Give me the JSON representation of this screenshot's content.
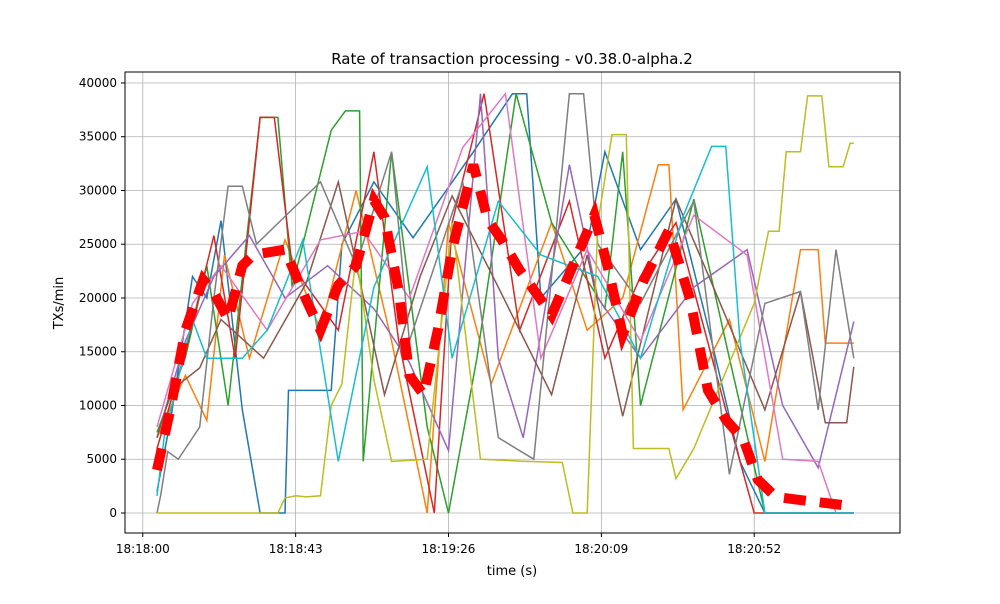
{
  "chart_data": {
    "type": "line",
    "title": "Rate of transaction processing  -  v0.38.0-alpha.2",
    "xlabel": "time (s)",
    "ylabel": "TXs/min",
    "xlim": [
      "18:17:55",
      "18:21:33"
    ],
    "ylim": [
      -1860,
      41020
    ],
    "x_ticks": [
      "18:18:00",
      "18:18:43",
      "18:19:26",
      "18:20:09",
      "18:20:52"
    ],
    "y_ticks": [
      0,
      5000,
      10000,
      15000,
      20000,
      25000,
      30000,
      35000,
      40000
    ],
    "grid": true,
    "series": [
      {
        "color": "#1f77b4",
        "points": [
          [
            "18:18:04",
            2000
          ],
          [
            "18:18:08",
            9000
          ],
          [
            "18:18:14",
            22000
          ],
          [
            "18:18:18",
            20000
          ],
          [
            "18:18:22",
            27200
          ],
          [
            "18:18:28",
            9600
          ],
          [
            "18:18:33",
            0
          ],
          [
            "18:18:40",
            0
          ],
          [
            "18:18:41",
            11400
          ],
          [
            "18:18:53",
            11400
          ],
          [
            "18:18:56",
            25000
          ],
          [
            "18:19:05",
            30800
          ],
          [
            "18:19:16",
            25600
          ],
          [
            "18:19:33",
            33600
          ],
          [
            "18:19:44",
            39000
          ],
          [
            "18:19:48",
            39000
          ],
          [
            "18:19:52",
            20000
          ],
          [
            "18:20:05",
            25000
          ],
          [
            "18:20:10",
            33600
          ],
          [
            "18:20:20",
            24500
          ],
          [
            "18:20:30",
            29200
          ],
          [
            "18:20:40",
            16000
          ],
          [
            "18:20:48",
            4800
          ],
          [
            "18:20:55",
            0
          ],
          [
            "18:21:20",
            0
          ]
        ]
      },
      {
        "color": "#ff7f0e",
        "points": [
          [
            "18:18:04",
            7000
          ],
          [
            "18:18:12",
            12800
          ],
          [
            "18:18:18",
            8600
          ],
          [
            "18:18:23",
            24000
          ],
          [
            "18:18:30",
            14400
          ],
          [
            "18:18:40",
            25400
          ],
          [
            "18:18:50",
            17000
          ],
          [
            "18:19:00",
            30000
          ],
          [
            "18:19:10",
            16000
          ],
          [
            "18:19:20",
            0
          ],
          [
            "18:19:26",
            27000
          ],
          [
            "18:19:38",
            12000
          ],
          [
            "18:19:55",
            27000
          ],
          [
            "18:20:05",
            17000
          ],
          [
            "18:20:15",
            20000
          ],
          [
            "18:20:25",
            32400
          ],
          [
            "18:20:28",
            32400
          ],
          [
            "18:20:32",
            9600
          ],
          [
            "18:20:45",
            18000
          ],
          [
            "18:20:55",
            4800
          ],
          [
            "18:21:05",
            24500
          ],
          [
            "18:21:10",
            24500
          ],
          [
            "18:21:12",
            15800
          ],
          [
            "18:21:20",
            15800
          ]
        ]
      },
      {
        "color": "#2ca02c",
        "points": [
          [
            "18:18:04",
            7500
          ],
          [
            "18:18:12",
            14500
          ],
          [
            "18:18:18",
            23000
          ],
          [
            "18:18:24",
            10000
          ],
          [
            "18:18:33",
            36800
          ],
          [
            "18:18:38",
            36800
          ],
          [
            "18:18:42",
            21000
          ],
          [
            "18:18:53",
            35600
          ],
          [
            "18:18:57",
            37400
          ],
          [
            "18:19:01",
            37400
          ],
          [
            "18:19:02",
            4800
          ],
          [
            "18:19:10",
            33600
          ],
          [
            "18:19:20",
            8000
          ],
          [
            "18:19:26",
            0
          ],
          [
            "18:19:34",
            14400
          ],
          [
            "18:19:45",
            39000
          ],
          [
            "18:19:55",
            27000
          ],
          [
            "18:20:10",
            19000
          ],
          [
            "18:20:15",
            33600
          ],
          [
            "18:20:20",
            10000
          ],
          [
            "18:20:35",
            29200
          ],
          [
            "18:20:45",
            14400
          ],
          [
            "18:20:55",
            0
          ],
          [
            "18:21:20",
            0
          ]
        ]
      },
      {
        "color": "#d62728",
        "points": [
          [
            "18:18:04",
            6000
          ],
          [
            "18:18:12",
            15000
          ],
          [
            "18:18:20",
            25800
          ],
          [
            "18:18:26",
            14400
          ],
          [
            "18:18:33",
            36800
          ],
          [
            "18:18:37",
            36800
          ],
          [
            "18:18:42",
            23000
          ],
          [
            "18:18:55",
            17000
          ],
          [
            "18:19:05",
            33600
          ],
          [
            "18:19:12",
            16000
          ],
          [
            "18:19:22",
            0
          ],
          [
            "18:19:27",
            27000
          ],
          [
            "18:19:36",
            39000
          ],
          [
            "18:19:46",
            17000
          ],
          [
            "18:20:00",
            29000
          ],
          [
            "18:20:10",
            14400
          ],
          [
            "18:20:20",
            22000
          ],
          [
            "18:20:30",
            27000
          ],
          [
            "18:20:44",
            9600
          ],
          [
            "18:20:52",
            0
          ],
          [
            "18:21:20",
            0
          ]
        ]
      },
      {
        "color": "#9467bd",
        "points": [
          [
            "18:18:04",
            7000
          ],
          [
            "18:18:12",
            16000
          ],
          [
            "18:18:20",
            22000
          ],
          [
            "18:18:30",
            25800
          ],
          [
            "18:18:40",
            20000
          ],
          [
            "18:18:52",
            23000
          ],
          [
            "18:19:05",
            19000
          ],
          [
            "18:19:15",
            14000
          ],
          [
            "18:19:26",
            5800
          ],
          [
            "18:19:35",
            39000
          ],
          [
            "18:19:40",
            14400
          ],
          [
            "18:19:47",
            7000
          ],
          [
            "18:20:00",
            32400
          ],
          [
            "18:20:08",
            20000
          ],
          [
            "18:20:20",
            14400
          ],
          [
            "18:20:35",
            21000
          ],
          [
            "18:20:50",
            24500
          ],
          [
            "18:21:00",
            10000
          ],
          [
            "18:21:10",
            4200
          ],
          [
            "18:21:20",
            17800
          ]
        ]
      },
      {
        "color": "#8c564b",
        "points": [
          [
            "18:18:04",
            7000
          ],
          [
            "18:18:08",
            11400
          ],
          [
            "18:18:16",
            13500
          ],
          [
            "18:18:22",
            18000
          ],
          [
            "18:18:34",
            14400
          ],
          [
            "18:18:46",
            21400
          ],
          [
            "18:18:55",
            30800
          ],
          [
            "18:19:08",
            11000
          ],
          [
            "18:19:18",
            22000
          ],
          [
            "18:19:27",
            29500
          ],
          [
            "18:19:40",
            21000
          ],
          [
            "18:19:55",
            11000
          ],
          [
            "18:20:05",
            24000
          ],
          [
            "18:20:15",
            9000
          ],
          [
            "18:20:30",
            29200
          ],
          [
            "18:20:40",
            21400
          ],
          [
            "18:20:55",
            9600
          ],
          [
            "18:21:05",
            20600
          ],
          [
            "18:21:12",
            8400
          ],
          [
            "18:21:18",
            8400
          ],
          [
            "18:21:20",
            13600
          ]
        ]
      },
      {
        "color": "#e377c2",
        "points": [
          [
            "18:18:04",
            8000
          ],
          [
            "18:18:14",
            19500
          ],
          [
            "18:18:22",
            23000
          ],
          [
            "18:18:35",
            17000
          ],
          [
            "18:18:50",
            25400
          ],
          [
            "18:19:02",
            26200
          ],
          [
            "18:19:15",
            20000
          ],
          [
            "18:19:30",
            34000
          ],
          [
            "18:19:42",
            39000
          ],
          [
            "18:19:52",
            14400
          ],
          [
            "18:20:05",
            24500
          ],
          [
            "18:20:20",
            16000
          ],
          [
            "18:20:35",
            27700
          ],
          [
            "18:20:50",
            24000
          ],
          [
            "18:21:00",
            5000
          ],
          [
            "18:21:10",
            4800
          ],
          [
            "18:21:15",
            0
          ],
          [
            "18:21:20",
            0
          ]
        ]
      },
      {
        "color": "#7f7f7f",
        "points": [
          [
            "18:18:04",
            0
          ],
          [
            "18:18:05",
            1600
          ],
          [
            "18:18:07",
            5700
          ],
          [
            "18:18:10",
            5000
          ],
          [
            "18:18:12",
            6000
          ],
          [
            "18:18:16",
            8000
          ],
          [
            "18:18:20",
            20000
          ],
          [
            "18:18:24",
            30400
          ],
          [
            "18:18:28",
            30400
          ],
          [
            "18:18:32",
            25000
          ],
          [
            "18:18:50",
            30800
          ],
          [
            "18:19:00",
            23000
          ],
          [
            "18:19:10",
            33600
          ],
          [
            "18:19:15",
            16000
          ],
          [
            "18:19:30",
            30800
          ],
          [
            "18:19:40",
            7000
          ],
          [
            "18:19:50",
            5000
          ],
          [
            "18:20:00",
            39000
          ],
          [
            "18:20:04",
            39000
          ],
          [
            "18:20:08",
            25000
          ],
          [
            "18:20:20",
            19500
          ],
          [
            "18:20:35",
            29000
          ],
          [
            "18:20:45",
            3600
          ],
          [
            "18:20:55",
            19500
          ],
          [
            "18:21:05",
            20600
          ],
          [
            "18:21:10",
            9600
          ],
          [
            "18:21:15",
            24500
          ],
          [
            "18:21:20",
            14400
          ]
        ]
      },
      {
        "color": "#bcbd22",
        "points": [
          [
            "18:18:04",
            0
          ],
          [
            "18:18:38",
            0
          ],
          [
            "18:18:40",
            1400
          ],
          [
            "18:18:43",
            1600
          ],
          [
            "18:18:46",
            1500
          ],
          [
            "18:18:50",
            1600
          ],
          [
            "18:18:53",
            10000
          ],
          [
            "18:18:56",
            12000
          ],
          [
            "18:19:00",
            24000
          ],
          [
            "18:19:05",
            12400
          ],
          [
            "18:19:10",
            4800
          ],
          [
            "18:19:20",
            5000
          ],
          [
            "18:19:27",
            27000
          ],
          [
            "18:19:35",
            5000
          ],
          [
            "18:19:48",
            4800
          ],
          [
            "18:19:58",
            4700
          ],
          [
            "18:20:01",
            0
          ],
          [
            "18:20:05",
            0
          ],
          [
            "18:20:08",
            27000
          ],
          [
            "18:20:12",
            35200
          ],
          [
            "18:20:16",
            35200
          ],
          [
            "18:20:18",
            6000
          ],
          [
            "18:20:28",
            6000
          ],
          [
            "18:20:30",
            3200
          ],
          [
            "18:20:35",
            6000
          ],
          [
            "18:20:52",
            19500
          ],
          [
            "18:20:56",
            26200
          ],
          [
            "18:20:59",
            26200
          ],
          [
            "18:21:01",
            33600
          ],
          [
            "18:21:05",
            33600
          ],
          [
            "18:21:07",
            38800
          ],
          [
            "18:21:11",
            38800
          ],
          [
            "18:21:13",
            32200
          ],
          [
            "18:21:17",
            32200
          ],
          [
            "18:21:19",
            34400
          ],
          [
            "18:21:20",
            34400
          ]
        ]
      },
      {
        "color": "#17becf",
        "points": [
          [
            "18:18:04",
            1600
          ],
          [
            "18:18:06",
            7000
          ],
          [
            "18:18:14",
            18000
          ],
          [
            "18:18:18",
            14400
          ],
          [
            "18:18:28",
            14400
          ],
          [
            "18:18:35",
            17000
          ],
          [
            "18:18:45",
            25400
          ],
          [
            "18:18:55",
            4800
          ],
          [
            "18:19:05",
            21000
          ],
          [
            "18:19:20",
            32200
          ],
          [
            "18:19:27",
            14400
          ],
          [
            "18:19:40",
            29000
          ],
          [
            "18:19:52",
            24000
          ],
          [
            "18:20:08",
            22000
          ],
          [
            "18:20:20",
            14400
          ],
          [
            "18:20:32",
            27600
          ],
          [
            "18:20:40",
            34100
          ],
          [
            "18:20:44",
            34100
          ],
          [
            "18:20:48",
            16000
          ],
          [
            "18:20:55",
            0
          ],
          [
            "18:21:20",
            0
          ]
        ]
      }
    ],
    "mean": {
      "color": "#ff0000",
      "points": [
        [
          "18:18:04",
          4000
        ],
        [
          "18:18:08",
          10000
        ],
        [
          "18:18:12",
          17000
        ],
        [
          "18:18:17",
          21700
        ],
        [
          "18:18:20",
          20500
        ],
        [
          "18:18:24",
          18000
        ],
        [
          "18:18:28",
          23000
        ],
        [
          "18:18:31",
          24000
        ],
        [
          "18:18:40",
          24500
        ],
        [
          "18:18:46",
          19800
        ],
        [
          "18:18:50",
          17000
        ],
        [
          "18:18:55",
          21200
        ],
        [
          "18:19:00",
          23000
        ],
        [
          "18:19:05",
          29100
        ],
        [
          "18:19:08",
          27500
        ],
        [
          "18:19:12",
          20700
        ],
        [
          "18:19:15",
          12800
        ],
        [
          "18:19:19",
          11000
        ],
        [
          "18:19:23",
          17000
        ],
        [
          "18:19:27",
          24500
        ],
        [
          "18:19:33",
          32400
        ],
        [
          "18:19:37",
          27300
        ],
        [
          "18:19:41",
          25400
        ],
        [
          "18:19:46",
          22600
        ],
        [
          "18:19:51",
          20300
        ],
        [
          "18:19:55",
          18400
        ],
        [
          "18:20:01",
          23000
        ],
        [
          "18:20:07",
          27700
        ],
        [
          "18:20:11",
          22600
        ],
        [
          "18:20:15",
          16600
        ],
        [
          "18:20:21",
          21700
        ],
        [
          "18:20:28",
          26300
        ],
        [
          "18:20:34",
          19800
        ],
        [
          "18:20:39",
          11400
        ],
        [
          "18:20:44",
          8700
        ],
        [
          "18:20:49",
          6800
        ],
        [
          "18:20:53",
          3100
        ],
        [
          "18:20:58",
          1500
        ],
        [
          "18:21:05",
          1200
        ],
        [
          "18:21:18",
          700
        ]
      ]
    }
  }
}
